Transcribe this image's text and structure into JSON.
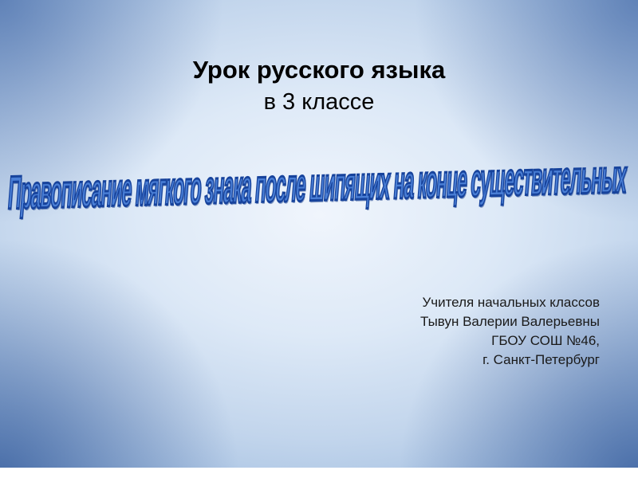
{
  "slide": {
    "title": {
      "line1": "Урок русского языка",
      "line2": "в 3 классе"
    },
    "wordart_text": "Правописание мягкого знака после шипящих на конце существительных",
    "credits": {
      "line1": "Учителя начальных классов",
      "line2": "Тывун Валерии Валерьевны",
      "line3": "ГБОУ СОШ №46,",
      "line4": "г. Санкт-Петербург"
    },
    "colors": {
      "wordart_fill": "#4a7fd6",
      "wordart_outline": "#17439c",
      "background_center": "#f0f5fc",
      "background_edge": "#6b92c3",
      "title_text": "#000000",
      "credits_text": "#1a1a1a"
    }
  }
}
